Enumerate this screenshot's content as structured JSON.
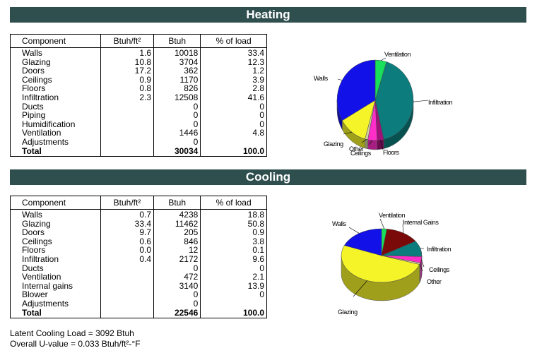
{
  "heating": {
    "title": "Heating",
    "headers": [
      "Component",
      "Btuh/ft²",
      "Btuh",
      "% of load"
    ],
    "rows": [
      [
        "Walls",
        "1.6",
        "10018",
        "33.4"
      ],
      [
        "Glazing",
        "10.8",
        "3704",
        "12.3"
      ],
      [
        "Doors",
        "17.2",
        "362",
        "1.2"
      ],
      [
        "Ceilings",
        "0.9",
        "1170",
        "3.9"
      ],
      [
        "Floors",
        "0.8",
        "826",
        "2.8"
      ],
      [
        "Infiltration",
        "2.3",
        "12508",
        "41.6"
      ],
      [
        "Ducts",
        "",
        "0",
        "0"
      ],
      [
        "Piping",
        "",
        "0",
        "0"
      ],
      [
        "Humidification",
        "",
        "0",
        "0"
      ],
      [
        "Ventilation",
        "",
        "1446",
        "4.8"
      ],
      [
        "Adjustments",
        "",
        "0",
        ""
      ],
      [
        "Total",
        "",
        "30034",
        "100.0"
      ]
    ],
    "pie": {
      "slices": [
        {
          "label": "Ventilation",
          "value": 4.8,
          "color": "#19e05a"
        },
        {
          "label": "Infiltration",
          "value": 41.6,
          "color": "#0d7c7c"
        },
        {
          "label": "Floors",
          "value": 2.8,
          "color": "#a0127a"
        },
        {
          "label": "Ceilings",
          "value": 3.9,
          "color": "#ff2ec8"
        },
        {
          "label": "Other",
          "value": 1.2,
          "color": "#d2cfa0"
        },
        {
          "label": "Glazing",
          "value": 12.3,
          "color": "#f4f429"
        },
        {
          "label": "Walls",
          "value": 33.4,
          "color": "#1212e8"
        }
      ]
    }
  },
  "cooling": {
    "title": "Cooling",
    "headers": [
      "Component",
      "Btuh/ft²",
      "Btuh",
      "% of load"
    ],
    "rows": [
      [
        "Walls",
        "0.7",
        "4238",
        "18.8"
      ],
      [
        "Glazing",
        "33.4",
        "11462",
        "50.8"
      ],
      [
        "Doors",
        "9.7",
        "205",
        "0.9"
      ],
      [
        "Ceilings",
        "0.6",
        "846",
        "3.8"
      ],
      [
        "Floors",
        "0.0",
        "12",
        "0.1"
      ],
      [
        "Infiltration",
        "0.4",
        "2172",
        "9.6"
      ],
      [
        "Ducts",
        "",
        "0",
        "0"
      ],
      [
        "Ventilation",
        "",
        "472",
        "2.1"
      ],
      [
        "Internal gains",
        "",
        "3140",
        "13.9"
      ],
      [
        "Blower",
        "",
        "0",
        "0"
      ],
      [
        "Adjustments",
        "",
        "0",
        ""
      ],
      [
        "Total",
        "",
        "22546",
        "100.0"
      ]
    ],
    "pie": {
      "slices": [
        {
          "label": "Ventilation",
          "value": 2.1,
          "color": "#19e05a"
        },
        {
          "label": "Internal Gains",
          "value": 13.9,
          "color": "#7a0a0a"
        },
        {
          "label": "Infiltration",
          "value": 9.6,
          "color": "#0d7c7c"
        },
        {
          "label": "Ceilings",
          "value": 3.8,
          "color": "#ff2ec8"
        },
        {
          "label": "Other",
          "value": 1.0,
          "color": "#d2cfa0"
        },
        {
          "label": "Glazing",
          "value": 50.8,
          "color": "#f4f429"
        },
        {
          "label": "Walls",
          "value": 18.8,
          "color": "#1212e8"
        }
      ]
    }
  },
  "footer": {
    "latent": "Latent Cooling Load = 3092 Btuh",
    "uvalue": "Overall U-value = 0.033 Btuh/ft²-°F"
  }
}
